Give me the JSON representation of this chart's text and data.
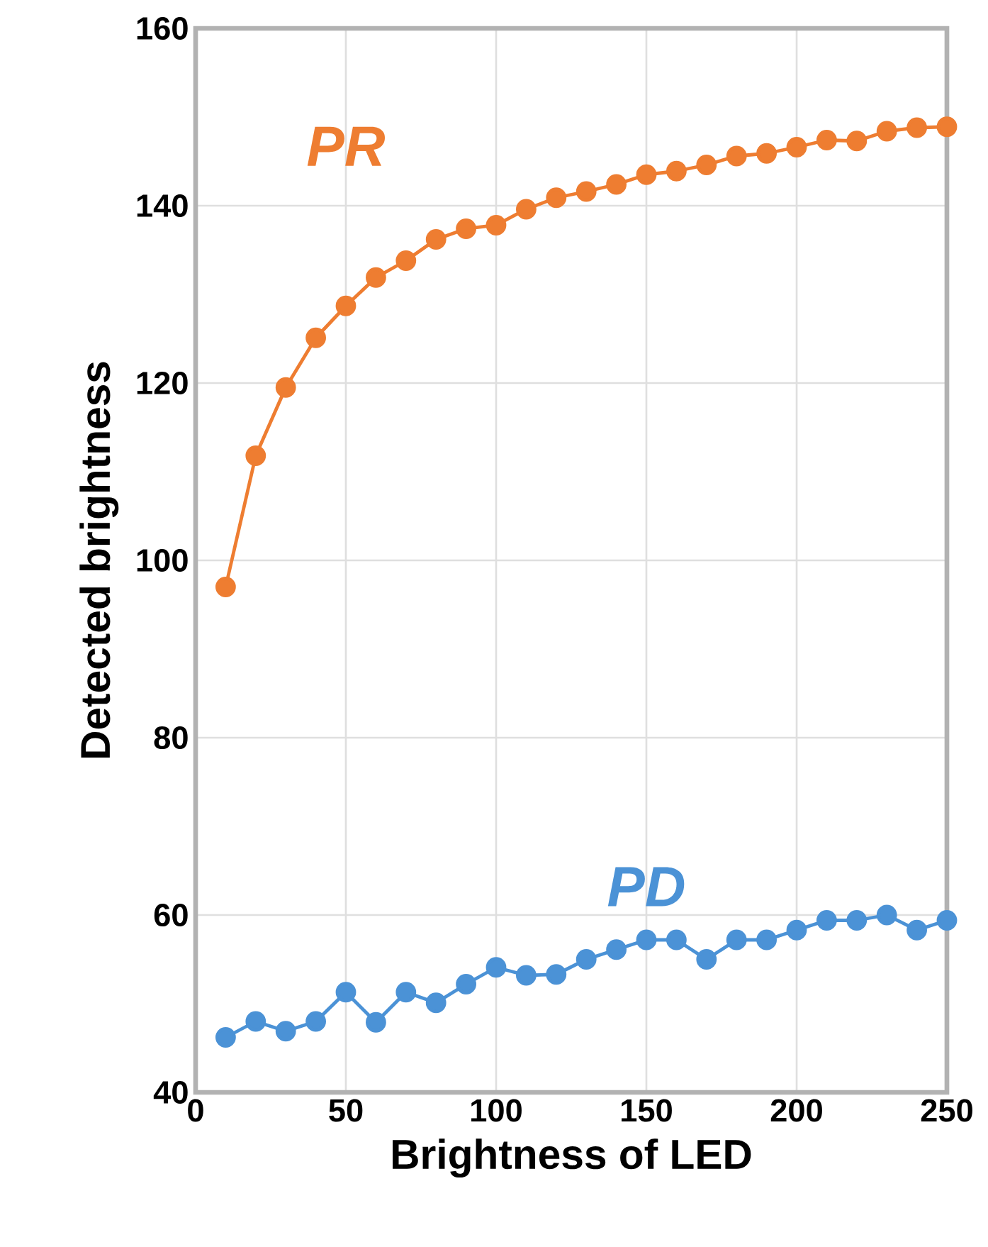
{
  "chart_data": {
    "type": "line",
    "xlabel": "Brightness of LED",
    "ylabel": "Detected brightness",
    "x": [
      10,
      20,
      30,
      40,
      50,
      60,
      70,
      80,
      90,
      100,
      110,
      120,
      130,
      140,
      150,
      160,
      170,
      180,
      190,
      200,
      210,
      220,
      230,
      240,
      250
    ],
    "series": [
      {
        "name": "PR",
        "color": "#ee7d31",
        "values": [
          97.0,
          111.8,
          119.5,
          125.1,
          128.7,
          131.9,
          133.8,
          136.2,
          137.4,
          137.8,
          139.6,
          140.9,
          141.6,
          142.4,
          143.5,
          143.9,
          144.6,
          145.6,
          145.9,
          146.6,
          147.4,
          147.3,
          148.4,
          148.8,
          148.9
        ]
      },
      {
        "name": "PD",
        "color": "#4b92d6",
        "values": [
          46.2,
          48.0,
          46.9,
          48.0,
          51.3,
          47.9,
          51.3,
          50.1,
          52.2,
          54.1,
          53.2,
          53.3,
          55.0,
          56.1,
          57.2,
          57.2,
          55.0,
          57.2,
          57.2,
          58.3,
          59.4,
          59.4,
          60.0,
          58.3,
          59.4
        ]
      }
    ],
    "xlim": [
      0,
      250
    ],
    "xticks": [
      0,
      50,
      100,
      150,
      200,
      250
    ],
    "ylim": [
      40,
      160
    ],
    "yticks": [
      40,
      60,
      80,
      100,
      120,
      140,
      160
    ],
    "grid": true,
    "marker": "circle",
    "line_style": "solid"
  }
}
